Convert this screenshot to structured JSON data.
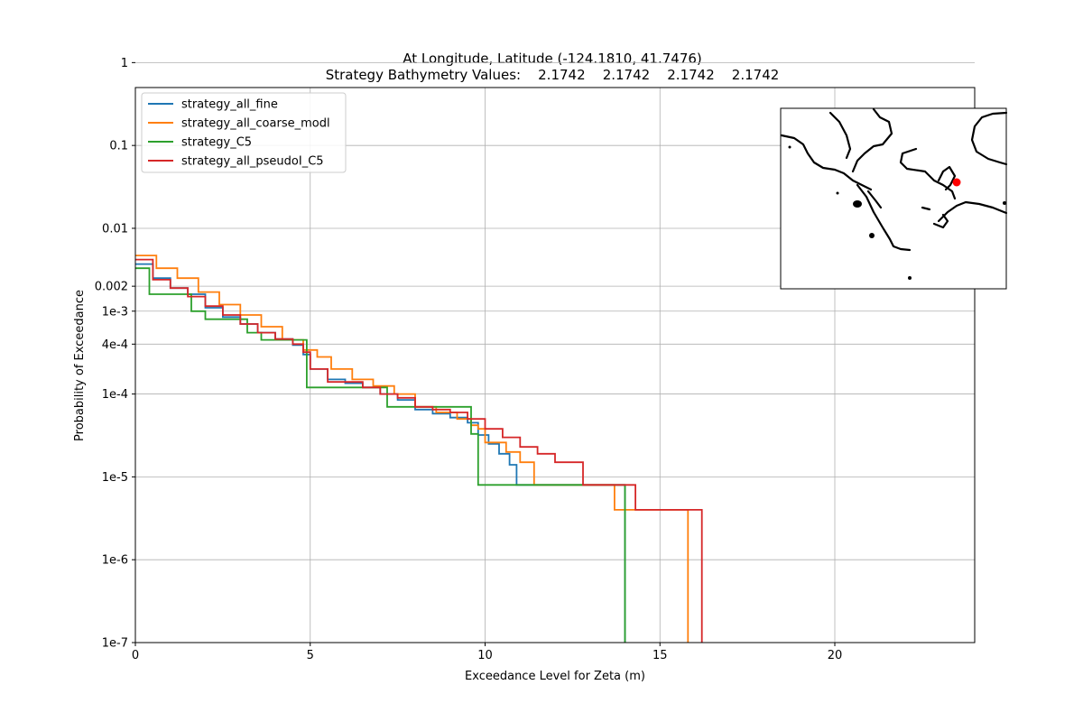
{
  "chart_data": {
    "type": "line",
    "title_line1": "At Longitude, Latitude (-124.1810,  41.7476)",
    "title_line2": "Strategy Bathymetry Values:    2.1742    2.1742    2.1742    2.1742",
    "xlabel": "Exceedance Level for Zeta (m)",
    "ylabel": "Probability of Exceedance",
    "xlim": [
      0,
      24
    ],
    "ylim": [
      1e-07,
      0.5
    ],
    "yscale": "log",
    "grid": true,
    "legend_position": "upper-left",
    "x_ticks": [
      {
        "value": 0,
        "label": "0"
      },
      {
        "value": 5,
        "label": "5"
      },
      {
        "value": 10,
        "label": "10"
      },
      {
        "value": 15,
        "label": "15"
      },
      {
        "value": 20,
        "label": "20"
      }
    ],
    "y_ticks": [
      {
        "value": 1e-07,
        "label": "1e-7"
      },
      {
        "value": 1e-06,
        "label": "1e-6"
      },
      {
        "value": 1e-05,
        "label": "1e-5"
      },
      {
        "value": 0.0001,
        "label": "1e-4"
      },
      {
        "value": 0.0004,
        "label": "4e-4"
      },
      {
        "value": 0.001,
        "label": "1e-3"
      },
      {
        "value": 0.002,
        "label": "0.002"
      },
      {
        "value": 0.01,
        "label": "0.01"
      },
      {
        "value": 0.1,
        "label": "0.1"
      },
      {
        "value": 1,
        "label": "1"
      }
    ],
    "series": [
      {
        "name": "strategy_all_fine",
        "color": "#1f77b4",
        "points": [
          [
            0,
            0.0037
          ],
          [
            0.5,
            0.0025
          ],
          [
            1,
            0.0019
          ],
          [
            1.5,
            0.0016
          ],
          [
            2,
            0.0011
          ],
          [
            2.5,
            0.00085
          ],
          [
            3,
            0.0007
          ],
          [
            3.5,
            0.00055
          ],
          [
            4,
            0.00046
          ],
          [
            4.5,
            0.00039
          ],
          [
            4.8,
            0.0003
          ],
          [
            5,
            0.0002
          ],
          [
            5.5,
            0.00015
          ],
          [
            6,
            0.000135
          ],
          [
            6.5,
            0.00012
          ],
          [
            7,
            0.0001
          ],
          [
            7.5,
            8.5e-05
          ],
          [
            8,
            6.5e-05
          ],
          [
            8.5,
            5.8e-05
          ],
          [
            9,
            5.2e-05
          ],
          [
            9.5,
            4.5e-05
          ],
          [
            9.8,
            3.2e-05
          ],
          [
            10.1,
            2.5e-05
          ],
          [
            10.4,
            1.9e-05
          ],
          [
            10.7,
            1.4e-05
          ],
          [
            10.9,
            1.1e-05
          ],
          [
            10.9,
            8e-06
          ],
          [
            13.8,
            8e-06
          ],
          [
            14,
            4e-06
          ],
          [
            14,
            1e-07
          ]
        ]
      },
      {
        "name": "strategy_all_coarse_modl",
        "color": "#ff7f0e",
        "points": [
          [
            0,
            0.0047
          ],
          [
            0.6,
            0.0033
          ],
          [
            1.2,
            0.0025
          ],
          [
            1.8,
            0.0017
          ],
          [
            2.4,
            0.0012
          ],
          [
            3,
            0.0009
          ],
          [
            3.6,
            0.00065
          ],
          [
            4.2,
            0.00045
          ],
          [
            4.8,
            0.00034
          ],
          [
            5.2,
            0.00028
          ],
          [
            5.6,
            0.0002
          ],
          [
            6.2,
            0.00015
          ],
          [
            6.8,
            0.000125
          ],
          [
            7.4,
            0.0001
          ],
          [
            8,
            7e-05
          ],
          [
            8.6,
            6e-05
          ],
          [
            9.2,
            5e-05
          ],
          [
            9.6,
            4.2e-05
          ],
          [
            9.8,
            3.8e-05
          ],
          [
            10,
            2.6e-05
          ],
          [
            10.6,
            2e-05
          ],
          [
            11,
            1.5e-05
          ],
          [
            11.4,
            1.1e-05
          ],
          [
            11.4,
            8e-06
          ],
          [
            13.4,
            8e-06
          ],
          [
            13.7,
            4e-06
          ],
          [
            15.8,
            4e-06
          ],
          [
            15.8,
            1e-07
          ]
        ]
      },
      {
        "name": "strategy_C5",
        "color": "#2ca02c",
        "points": [
          [
            0,
            0.0033
          ],
          [
            0.4,
            0.0033
          ],
          [
            0.4,
            0.0016
          ],
          [
            1.6,
            0.0016
          ],
          [
            1.6,
            0.001
          ],
          [
            2,
            0.001
          ],
          [
            2,
            0.0008
          ],
          [
            3.2,
            0.0008
          ],
          [
            3.2,
            0.00055
          ],
          [
            3.6,
            0.00055
          ],
          [
            3.6,
            0.00045
          ],
          [
            4.9,
            0.00045
          ],
          [
            4.9,
            0.00012
          ],
          [
            7.2,
            0.00012
          ],
          [
            7.2,
            7e-05
          ],
          [
            9.6,
            7e-05
          ],
          [
            9.6,
            3.3e-05
          ],
          [
            9.8,
            3.3e-05
          ],
          [
            9.8,
            8e-06
          ],
          [
            14,
            8e-06
          ],
          [
            14,
            1e-07
          ]
        ]
      },
      {
        "name": "strategy_all_pseudoI_C5",
        "color": "#d62728",
        "points": [
          [
            0,
            0.0042
          ],
          [
            0.5,
            0.0024
          ],
          [
            1,
            0.0019
          ],
          [
            1.5,
            0.0015
          ],
          [
            2,
            0.00115
          ],
          [
            2.5,
            0.0009
          ],
          [
            3,
            0.0007
          ],
          [
            3.5,
            0.00055
          ],
          [
            4,
            0.00046
          ],
          [
            4.5,
            0.0004
          ],
          [
            4.8,
            0.00032
          ],
          [
            5,
            0.0002
          ],
          [
            5.5,
            0.00014
          ],
          [
            6.5,
            0.00012
          ],
          [
            7,
            0.0001
          ],
          [
            7.5,
            9e-05
          ],
          [
            8,
            7e-05
          ],
          [
            8.5,
            6.5e-05
          ],
          [
            9,
            6e-05
          ],
          [
            9.5,
            5e-05
          ],
          [
            10,
            3.8e-05
          ],
          [
            10.5,
            3e-05
          ],
          [
            11,
            2.3e-05
          ],
          [
            11.5,
            2.3e-05
          ],
          [
            11.5,
            1.9e-05
          ],
          [
            12,
            1.9e-05
          ],
          [
            12,
            1.5e-05
          ],
          [
            12.7,
            1.5e-05
          ],
          [
            12.8,
            8e-06
          ],
          [
            14.1,
            8e-06
          ],
          [
            14.3,
            4e-06
          ],
          [
            16.2,
            4e-06
          ],
          [
            16.2,
            1e-07
          ]
        ]
      }
    ],
    "inset_map": {
      "marker_color": "#ff0000"
    }
  }
}
